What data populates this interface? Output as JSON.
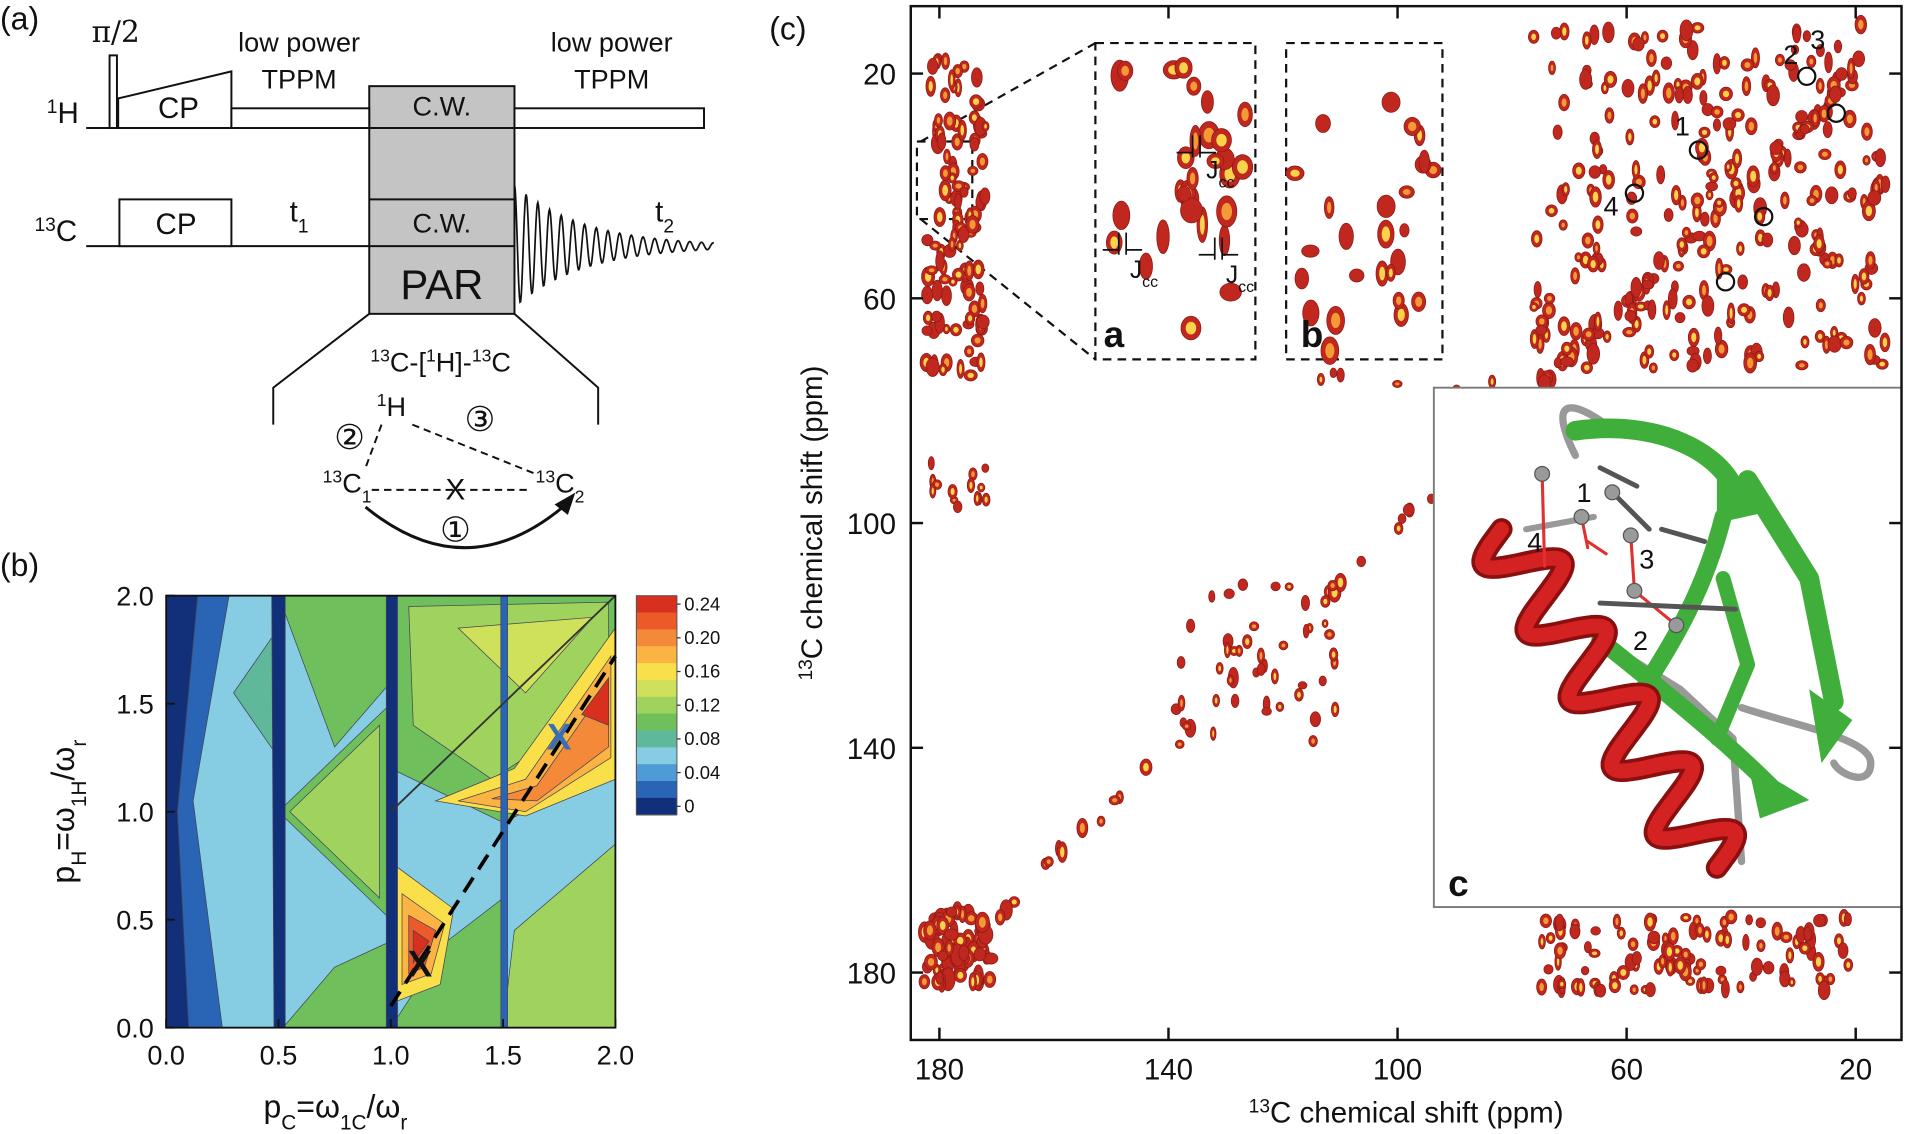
{
  "panel_labels": [
    "(a)",
    "(b)",
    "(c)"
  ],
  "pulse_sequence": {
    "h_channel": [
      {
        "text": "1",
        "script": "sup"
      },
      {
        "text": "H"
      }
    ],
    "c_channel": [
      {
        "text": "13",
        "script": "sup"
      },
      {
        "text": "C"
      }
    ],
    "pi_half": "π/2",
    "h_cp": "CP",
    "c_cp": "CP",
    "decoupling_left": [
      "low power",
      "TPPM"
    ],
    "decoupling_right": [
      "low power",
      "TPPM"
    ],
    "h_cw": "C.W.",
    "c_cw": "C.W.",
    "par": "PAR",
    "t1": [
      {
        "text": "t"
      },
      {
        "text": "1",
        "script": "sub"
      }
    ],
    "t2": [
      {
        "text": "t"
      },
      {
        "text": "2",
        "script": "sub"
      }
    ],
    "transfer": [
      {
        "text": "13",
        "script": "sup"
      },
      {
        "text": "C-["
      },
      {
        "text": "1",
        "script": "sup"
      },
      {
        "text": "H]-"
      },
      {
        "text": "13",
        "script": "sup"
      },
      {
        "text": "C"
      }
    ],
    "scheme": {
      "h": [
        {
          "text": "1",
          "script": "sup"
        },
        {
          "text": "H"
        }
      ],
      "c1": [
        {
          "text": "13",
          "script": "sup"
        },
        {
          "text": "C"
        },
        {
          "text": "1",
          "script": "sub"
        }
      ],
      "c2": [
        {
          "text": "13",
          "script": "sup"
        },
        {
          "text": "C"
        },
        {
          "text": "2",
          "script": "sub"
        }
      ],
      "step1": "①",
      "step2": "②",
      "step3": "③",
      "blocked": "X"
    }
  },
  "chart_data": [
    {
      "type": "contour",
      "xlabel": [
        {
          "text": "p"
        },
        {
          "text": "C",
          "script": "sub"
        },
        {
          "text": "=ω"
        },
        {
          "text": "1C",
          "script": "sub"
        },
        {
          "text": "/ω"
        },
        {
          "text": "r",
          "script": "sub"
        }
      ],
      "ylabel": [
        {
          "text": "p"
        },
        {
          "text": "H",
          "script": "sub"
        },
        {
          "text": "=ω"
        },
        {
          "text": "1H",
          "script": "sub"
        },
        {
          "text": "/ω"
        },
        {
          "text": "r",
          "script": "sub"
        }
      ],
      "xlim": [
        0,
        2
      ],
      "ylim": [
        0,
        2
      ],
      "xticks": [
        {
          "value": 0,
          "label": "0.0"
        },
        {
          "value": 0.5,
          "label": "0.5"
        },
        {
          "value": 1,
          "label": "1.0"
        },
        {
          "value": 1.5,
          "label": "1.5"
        },
        {
          "value": 2,
          "label": "2.0"
        }
      ],
      "yticks": [
        {
          "value": 0,
          "label": "0.0"
        },
        {
          "value": 0.5,
          "label": "0.5"
        },
        {
          "value": 1,
          "label": "1.0"
        },
        {
          "value": 1.5,
          "label": "1.5"
        },
        {
          "value": 2,
          "label": "2.0"
        }
      ],
      "colorbar": {
        "lim": [
          -0.01,
          0.25
        ],
        "ticks": [
          {
            "value": 0.24,
            "label": "0.24"
          },
          {
            "value": 0.2,
            "label": "0.20"
          },
          {
            "value": 0.16,
            "label": "0.16"
          },
          {
            "value": 0.12,
            "label": "0.12"
          },
          {
            "value": 0.08,
            "label": "0.08"
          },
          {
            "value": 0.04,
            "label": "0.04"
          },
          0
        ],
        "colors": [
          "#d7301f",
          "#ec5a2a",
          "#f5893a",
          "#fbb444",
          "#f9e04b",
          "#cfe05a",
          "#9fd35e",
          "#6fbf5c",
          "#5fb89a",
          "#86cde3",
          "#4f9bd6",
          "#2a64b4",
          "#12307a"
        ]
      },
      "markers": [
        {
          "label": "X",
          "color": "#111111",
          "x": 1.13,
          "y": 0.3
        },
        {
          "label": "X",
          "color": "#3a6fb5",
          "x": 1.75,
          "y": 1.35
        }
      ]
    },
    {
      "type": "spectrum",
      "xlabel": [
        {
          "text": "13",
          "script": "sup"
        },
        {
          "text": "C chemical shift (ppm)"
        }
      ],
      "ylabel": [
        {
          "text": "13",
          "script": "sup"
        },
        {
          "text": "C chemical shift (ppm)"
        }
      ],
      "xlim": [
        185,
        12
      ],
      "ylim": [
        8,
        192
      ],
      "xticks": [
        180,
        140,
        100,
        60,
        20
      ],
      "yticks": [
        20,
        60,
        100,
        140,
        180
      ],
      "insets": [
        "a",
        "b",
        "c"
      ],
      "coupling_label": [
        {
          "text": "J"
        },
        {
          "text": "cc",
          "script": "sub"
        }
      ],
      "assignments": [
        "1",
        "2",
        "3",
        "4"
      ],
      "structure_labels": [
        "1",
        "2",
        "3",
        "4"
      ]
    }
  ]
}
